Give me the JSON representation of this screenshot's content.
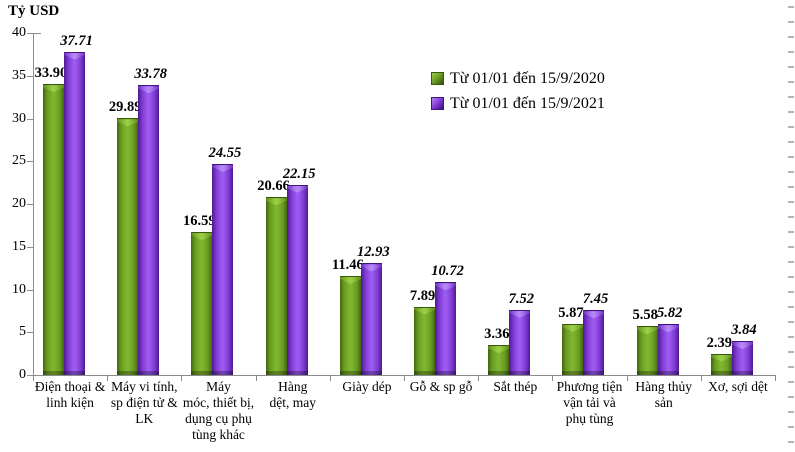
{
  "title": "Tỷ USD",
  "chart_data": {
    "type": "bar",
    "title": "",
    "ylabel": "Tỷ USD",
    "xlabel": "",
    "ylim": [
      0,
      40
    ],
    "ytick_step": 5,
    "grid": false,
    "legend_position": "upper right",
    "categories": [
      "Điện thoại &\nlinh kiện",
      "Máy vi tính,\nsp điện tử &\nLK",
      "Máy\nmóc, thiết bị,\ndụng cụ phụ\ntùng khác",
      "Hàng\ndệt, may",
      "Giày dép",
      "Gỗ & sp gỗ",
      "Sắt thép",
      "Phương tiện\nvận tải và\nphụ tùng",
      "Hàng thủy\nsản",
      "Xơ, sợi dệt"
    ],
    "series": [
      {
        "name": "Từ 01/01 đến 15/9/2020",
        "color": "#6d9f24",
        "values": [
          33.9,
          29.89,
          16.59,
          20.66,
          11.46,
          7.89,
          3.36,
          5.87,
          5.58,
          2.39
        ]
      },
      {
        "name": "Từ 01/01 đến 15/9/2021",
        "color": "#8a40d8",
        "values": [
          37.71,
          33.78,
          24.55,
          22.15,
          12.93,
          10.72,
          7.52,
          7.45,
          5.82,
          3.84
        ]
      }
    ]
  }
}
